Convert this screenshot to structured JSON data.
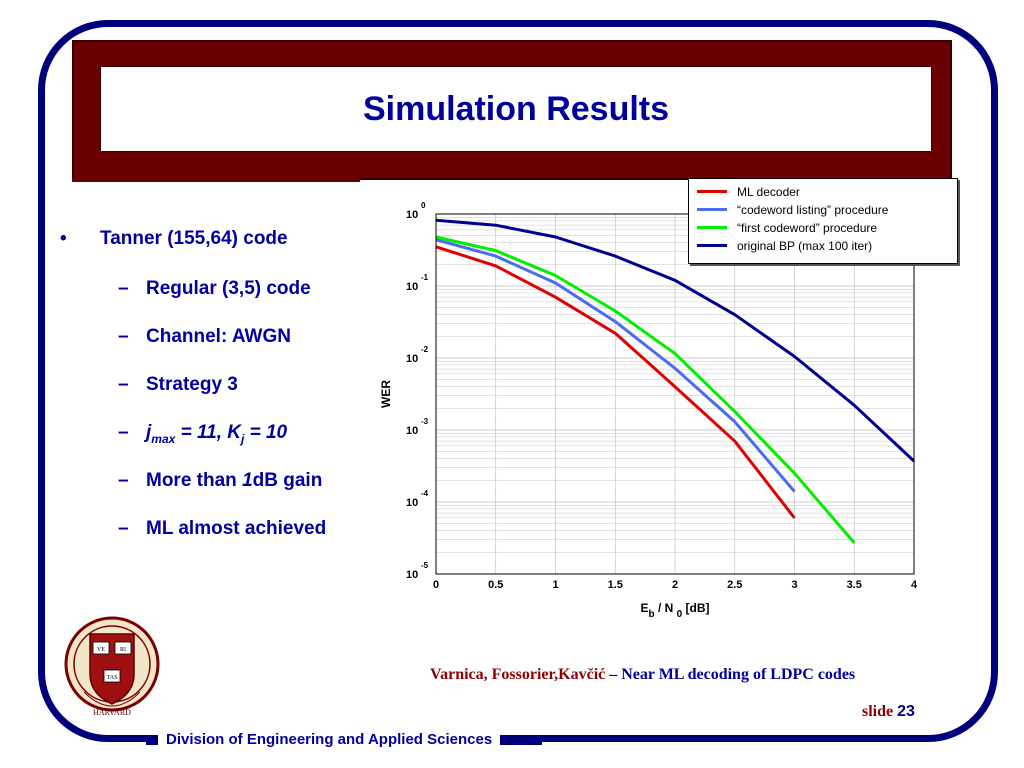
{
  "slide": {
    "title": "Simulation Results",
    "bullets": {
      "main": "Tanner (155,64) code",
      "items": [
        "Regular (3,5) code",
        "Channel: AWGN",
        "Strategy 3"
      ],
      "params": {
        "j": "j",
        "j_sub": "max",
        "j_rest": " = 11, ",
        "k": "K",
        "k_sub": "j",
        "k_rest": " = 10"
      },
      "gain": {
        "prefix": "More than ",
        "num": "1",
        "suffix": "dB gain"
      },
      "last": "ML almost achieved",
      "bullet_glyph": "•",
      "dash_glyph": "–"
    },
    "credit": {
      "authors": "Varnica, Fossorier,Kavčić",
      "sep": " – ",
      "topic": "Near ML decoding of LDPC codes"
    },
    "slide_label": "slide ",
    "slide_number": "23",
    "footer": "Division of Engineering and Applied Sciences",
    "seal_text": {
      "v": "VE",
      "r": "RI",
      "t": "TAS",
      "name": "HARVARD"
    }
  },
  "chart_data": {
    "type": "line",
    "ylabel": "WER",
    "xlabel_parts": {
      "e": "E",
      "e_sub": "b",
      "mid": " / N ",
      "n_sub": "0",
      "unit": " [dB]"
    },
    "x_ticks": [
      "0",
      "0.5",
      "1",
      "1.5",
      "2",
      "2.5",
      "3",
      "3.5",
      "4"
    ],
    "y_ticks": [
      {
        "base": "10",
        "exp": "0"
      },
      {
        "base": "10",
        "exp": "-1"
      },
      {
        "base": "10",
        "exp": "-2"
      },
      {
        "base": "10",
        "exp": "-3"
      },
      {
        "base": "10",
        "exp": "-4"
      },
      {
        "base": "10",
        "exp": "-5"
      }
    ],
    "xlim": [
      0,
      4
    ],
    "ylim": [
      1e-05,
      1
    ],
    "yscale": "log",
    "grid": true,
    "legend_position": "top-right",
    "series": [
      {
        "name": "ML decoder",
        "color": "#e00000",
        "x": [
          0,
          0.5,
          1,
          1.5,
          2,
          2.5,
          3
        ],
        "y": [
          0.35,
          0.19,
          0.07,
          0.022,
          0.004,
          0.0007,
          6e-05
        ]
      },
      {
        "name": "“codeword listing” procedure",
        "color": "#4a6cf0",
        "x": [
          0,
          0.5,
          1,
          1.5,
          2,
          2.5,
          3
        ],
        "y": [
          0.44,
          0.26,
          0.11,
          0.032,
          0.0072,
          0.0013,
          0.00014
        ]
      },
      {
        "name": "“first codeword” procedure",
        "color": "#00ee00",
        "x": [
          0,
          0.5,
          1,
          1.5,
          2,
          2.5,
          3,
          3.5
        ],
        "y": [
          0.48,
          0.31,
          0.14,
          0.045,
          0.0115,
          0.0018,
          0.00025,
          2.7e-05
        ]
      },
      {
        "name": "original BP (max 100 iter)",
        "color": "#000090",
        "x": [
          0,
          0.5,
          1,
          1.5,
          2,
          2.5,
          3,
          3.5,
          4
        ],
        "y": [
          0.82,
          0.7,
          0.48,
          0.26,
          0.12,
          0.04,
          0.0105,
          0.0022,
          0.00037
        ]
      }
    ]
  }
}
